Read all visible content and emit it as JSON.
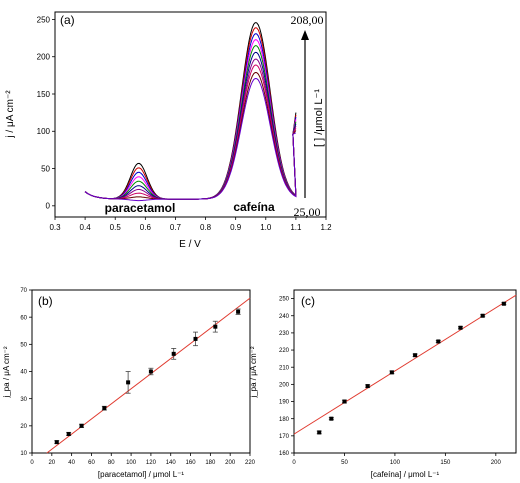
{
  "chart_data": [
    {
      "id": "a",
      "type": "line",
      "panel_label": "(a)",
      "xlabel": "E / V",
      "ylabel": "j / μA cm⁻²",
      "xlim": [
        0.3,
        1.2
      ],
      "ylim": [
        -15,
        260
      ],
      "xticks": [
        "0.3",
        "0.4",
        "0.5",
        "0.6",
        "0.7",
        "0.8",
        "0.9",
        "1.0",
        "1.1",
        "1.2"
      ],
      "yticks": [
        "0",
        "50",
        "100",
        "150",
        "200",
        "250"
      ],
      "annotations": {
        "paracetamol": "paracetamol",
        "cafeina": "cafeína",
        "top_conc": "208,00",
        "bottom_conc": "25,00",
        "conc_axis": "[ ] /μmol L⁻¹"
      },
      "grid": false,
      "series_colors": [
        "#000000",
        "#cc0000",
        "#0000cc",
        "#ff00ff",
        "#008800",
        "#000088",
        "#880088",
        "#cc0066",
        "#660000",
        "#6600cc"
      ],
      "series": [
        {
          "paracetamol_peak": 60,
          "cafeina_peak": 247
        },
        {
          "paracetamol_peak": 54,
          "cafeina_peak": 240
        },
        {
          "paracetamol_peak": 48,
          "cafeina_peak": 232
        },
        {
          "paracetamol_peak": 42,
          "cafeina_peak": 224
        },
        {
          "paracetamol_peak": 36,
          "cafeina_peak": 216
        },
        {
          "paracetamol_peak": 30,
          "cafeina_peak": 207
        },
        {
          "paracetamol_peak": 25,
          "cafeina_peak": 198
        },
        {
          "paracetamol_peak": 20,
          "cafeina_peak": 190
        },
        {
          "paracetamol_peak": 15,
          "cafeina_peak": 180
        },
        {
          "paracetamol_peak": 10,
          "cafeina_peak": 172
        }
      ]
    },
    {
      "id": "b",
      "type": "scatter",
      "panel_label": "(b)",
      "xlabel": "[paracetamol] / μmol L⁻¹",
      "ylabel": "j_pa / μA cm⁻²",
      "xlim": [
        0,
        220
      ],
      "ylim": [
        10,
        70
      ],
      "xticks": [
        "0",
        "20",
        "40",
        "60",
        "80",
        "100",
        "120",
        "140",
        "160",
        "180",
        "200",
        "220"
      ],
      "yticks": [
        "10",
        "20",
        "30",
        "40",
        "50",
        "60",
        "70"
      ],
      "x": [
        25,
        37,
        50,
        73,
        97,
        120,
        143,
        165,
        185,
        208
      ],
      "y": [
        14,
        17,
        20,
        26.5,
        36,
        40,
        46.5,
        52,
        56.5,
        62
      ],
      "yerr": [
        0.5,
        0.6,
        0.6,
        0.7,
        4,
        1.2,
        2,
        2.5,
        2,
        1
      ],
      "fit": {
        "x": [
          15,
          220
        ],
        "y": [
          10,
          67
        ]
      }
    },
    {
      "id": "c",
      "type": "scatter",
      "panel_label": "(c)",
      "xlabel": "[cafeína] / μmol L⁻¹",
      "ylabel": "j_pa / μA cm⁻²",
      "xlim": [
        0,
        220
      ],
      "ylim": [
        160,
        255
      ],
      "xticks": [
        "0",
        "50",
        "100",
        "150",
        "200"
      ],
      "yticks": [
        "160",
        "170",
        "180",
        "190",
        "200",
        "210",
        "220",
        "230",
        "240",
        "250"
      ],
      "x": [
        25,
        37,
        50,
        73,
        97,
        120,
        143,
        165,
        187,
        208
      ],
      "y": [
        172,
        180,
        190,
        199,
        207,
        217,
        225,
        233,
        240,
        247
      ],
      "yerr": [
        0.8,
        0.6,
        0.8,
        0.7,
        0.8,
        0.7,
        0.6,
        0.6,
        0.6,
        0.6
      ],
      "fit": {
        "x": [
          0,
          220
        ],
        "y": [
          171,
          252
        ]
      }
    }
  ]
}
